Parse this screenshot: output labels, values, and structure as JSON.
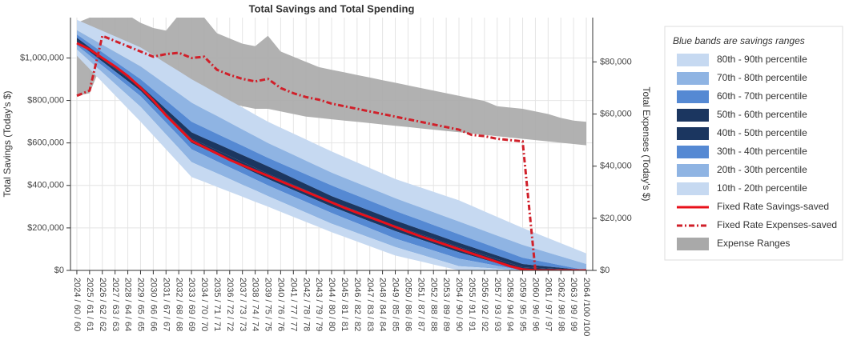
{
  "chart_data": {
    "type": "band",
    "title": "Total Savings and Total Spending",
    "y_label": "Total Savings (Today's $)",
    "y2_label": "Total Expenses (Today's $)",
    "legend_title": "Blue bands are savings ranges",
    "legend": "right",
    "grid": true,
    "categories": [
      "2024 / 60 / 60",
      "2025 / 61 / 61",
      "2026 / 62 / 62",
      "2027 / 63 / 63",
      "2028 / 64 / 64",
      "2029 / 65 / 65",
      "2030 / 66 / 66",
      "2031 / 67 / 67",
      "2032 / 68 / 68",
      "2033 / 69 / 69",
      "2034 / 70 / 70",
      "2035 / 71 / 71",
      "2036 / 72 / 72",
      "2037 / 73 / 73",
      "2038 / 74 / 74",
      "2039 / 75 / 75",
      "2040 / 76 / 76",
      "2041 / 77 / 77",
      "2042 / 78 / 78",
      "2043 / 79 / 79",
      "2044 / 80 / 80",
      "2045 / 81 / 81",
      "2046 / 82 / 82",
      "2047 / 83 / 83",
      "2048 / 84 / 84",
      "2049 / 85 / 85",
      "2050 / 86 / 86",
      "2051 / 87 / 87",
      "2052 / 88 / 88",
      "2053 / 89 / 89",
      "2054 / 90 / 90",
      "2055 / 91 / 91",
      "2056 / 92 / 92",
      "2057 / 93 / 93",
      "2058 / 94 / 94",
      "2059 / 95 / 95",
      "2060 / 96 / 96",
      "2061 / 97 / 97",
      "2062 / 98 / 98",
      "2063 / 99 / 99",
      "2064 /100 /100"
    ],
    "ylim": [
      0,
      1190000
    ],
    "yticks": [
      {
        "value": 0,
        "label": "$0"
      },
      {
        "value": 200000,
        "label": "$200,000"
      },
      {
        "value": 400000,
        "label": "$400,000"
      },
      {
        "value": 600000,
        "label": "$600,000"
      },
      {
        "value": 800000,
        "label": "$800,000"
      },
      {
        "value": 1000000,
        "label": "$1,000,000"
      }
    ],
    "y2lim": [
      0,
      97000
    ],
    "y2ticks": [
      {
        "value": 0,
        "label": "$0"
      },
      {
        "value": 20000,
        "label": "$20,000"
      },
      {
        "value": 40000,
        "label": "$40,000"
      },
      {
        "value": 60000,
        "label": "$60,000"
      },
      {
        "value": 80000,
        "label": "$80,000"
      }
    ],
    "bands": [
      {
        "name": "80th - 90th percentile",
        "color": "#c6d9f1"
      },
      {
        "name": "70th - 80th percentile",
        "color": "#8fb4e3"
      },
      {
        "name": "60th - 70th percentile",
        "color": "#5589d3"
      },
      {
        "name": "50th - 60th percentile",
        "color": "#1b3660"
      },
      {
        "name": "40th - 50th percentile",
        "color": "#1b3660"
      },
      {
        "name": "30th - 40th percentile",
        "color": "#5589d3"
      },
      {
        "name": "20th - 30th percentile",
        "color": "#8fb4e3"
      },
      {
        "name": "10th - 20th percentile",
        "color": "#c6d9f1"
      }
    ],
    "percentiles": [
      {
        "values": [
          1010000,
          948000,
          886000,
          824000,
          762000,
          700000,
          635000,
          570000,
          505000,
          440000,
          417000,
          393000,
          370000,
          347000,
          323000,
          300000,
          276000,
          252000,
          228000,
          204000,
          180000,
          158000,
          136000,
          114000,
          92000,
          70000,
          56000,
          42000,
          28000,
          14000,
          0,
          0,
          0,
          0,
          0,
          0,
          0,
          0,
          0,
          0,
          0
        ]
      },
      {
        "values": [
          1040000,
          986000,
          932000,
          878000,
          824000,
          770000,
          705000,
          640000,
          575000,
          510000,
          483000,
          457000,
          430000,
          403000,
          377000,
          350000,
          324000,
          298000,
          272000,
          246000,
          220000,
          198000,
          176000,
          154000,
          132000,
          110000,
          92000,
          74000,
          56000,
          38000,
          20000,
          16000,
          12000,
          8000,
          4000,
          0,
          0,
          0,
          0,
          0,
          0
        ]
      },
      {
        "values": [
          1060000,
          1012000,
          964000,
          916000,
          868000,
          820000,
          758000,
          695000,
          633000,
          570000,
          542000,
          513000,
          485000,
          457000,
          428000,
          400000,
          374000,
          348000,
          322000,
          296000,
          270000,
          246000,
          222000,
          198000,
          174000,
          150000,
          131000,
          112000,
          93000,
          74000,
          55000,
          44000,
          33000,
          22000,
          11000,
          0,
          0,
          0,
          0,
          0,
          0
        ]
      },
      {
        "values": [
          1075000,
          1029000,
          983000,
          937000,
          891000,
          845000,
          784000,
          723000,
          661000,
          600000,
          572000,
          543000,
          515000,
          487000,
          458000,
          430000,
          404000,
          378000,
          352000,
          326000,
          300000,
          277000,
          254000,
          231000,
          208000,
          185000,
          165000,
          145000,
          125000,
          105000,
          85000,
          68000,
          51000,
          34000,
          17000,
          0,
          0,
          0,
          0,
          0,
          0
        ]
      },
      {
        "values": [
          1085000,
          1040000,
          995000,
          950000,
          905000,
          860000,
          800000,
          740000,
          680000,
          620000,
          593000,
          565000,
          538000,
          510000,
          483000,
          455000,
          429000,
          403000,
          377000,
          351000,
          325000,
          302000,
          279000,
          256000,
          233000,
          210000,
          190000,
          170000,
          150000,
          130000,
          110000,
          91000,
          72000,
          53000,
          34000,
          15000,
          12000,
          9000,
          6000,
          3000,
          0
        ]
      },
      {
        "values": [
          1095000,
          1050000,
          1005000,
          960000,
          915000,
          870000,
          815000,
          760000,
          705000,
          650000,
          623000,
          597000,
          570000,
          543000,
          517000,
          490000,
          462000,
          434000,
          406000,
          378000,
          350000,
          327000,
          304000,
          281000,
          258000,
          235000,
          214000,
          193000,
          172000,
          151000,
          130000,
          110000,
          90000,
          70000,
          50000,
          30000,
          24000,
          18000,
          12000,
          6000,
          0
        ]
      },
      {
        "values": [
          1110000,
          1068000,
          1026000,
          984000,
          942000,
          900000,
          850000,
          800000,
          750000,
          700000,
          672000,
          643000,
          615000,
          587000,
          558000,
          530000,
          504000,
          478000,
          452000,
          426000,
          400000,
          376000,
          352000,
          328000,
          304000,
          280000,
          258000,
          236000,
          214000,
          192000,
          170000,
          148000,
          126000,
          104000,
          82000,
          60000,
          48000,
          36000,
          24000,
          12000,
          0
        ]
      },
      {
        "values": [
          1130000,
          1096000,
          1062000,
          1028000,
          994000,
          960000,
          918000,
          875000,
          833000,
          790000,
          758000,
          727000,
          695000,
          663000,
          632000,
          600000,
          572000,
          544000,
          516000,
          488000,
          460000,
          436000,
          412000,
          388000,
          364000,
          340000,
          318000,
          296000,
          274000,
          252000,
          230000,
          208000,
          186000,
          164000,
          142000,
          120000,
          102000,
          84000,
          66000,
          48000,
          30000
        ]
      },
      {
        "values": [
          1180000,
          1154000,
          1128000,
          1102000,
          1076000,
          1050000,
          1013000,
          975000,
          938000,
          900000,
          867000,
          833000,
          800000,
          767000,
          733000,
          700000,
          672000,
          644000,
          616000,
          588000,
          560000,
          534000,
          508000,
          482000,
          456000,
          430000,
          410000,
          390000,
          370000,
          350000,
          330000,
          304000,
          278000,
          252000,
          226000,
          200000,
          176000,
          152000,
          128000,
          104000,
          80000
        ]
      }
    ],
    "series": [
      {
        "name": "Fixed Rate Savings-saved",
        "color": "#e8101a",
        "style": "solid",
        "axis": "y",
        "values": [
          1070000,
          1040000,
          1000000,
          960000,
          915000,
          860000,
          800000,
          730000,
          670000,
          610000,
          580000,
          550000,
          520000,
          495000,
          470000,
          445000,
          420000,
          395000,
          370000,
          345000,
          320000,
          295000,
          272000,
          250000,
          228000,
          205000,
          182000,
          160000,
          140000,
          120000,
          100000,
          80000,
          60000,
          40000,
          20000,
          5000,
          0,
          0,
          0,
          0,
          0
        ]
      },
      {
        "name": "Fixed Rate Expenses-saved",
        "color": "#d0202a",
        "style": "dashdot",
        "axis": "y2",
        "values": [
          67000,
          69000,
          90000,
          88000,
          86000,
          84000,
          82000,
          83000,
          83500,
          81500,
          82000,
          77000,
          75000,
          73500,
          72500,
          73500,
          70000,
          68000,
          66500,
          65500,
          64000,
          63000,
          62000,
          61000,
          60000,
          59000,
          58000,
          57000,
          56000,
          55000,
          54000,
          52000,
          51500,
          50500,
          50000,
          49500,
          0,
          0,
          0,
          0,
          0
        ]
      }
    ],
    "expense_range": {
      "name": "Expense Ranges",
      "color": "#a9a9a9",
      "axis": "y2",
      "lower": [
        67000,
        68000,
        80000,
        82000,
        80000,
        78000,
        75000,
        72000,
        70000,
        68000,
        66000,
        65000,
        64000,
        63000,
        62000,
        62000,
        61000,
        60000,
        59000,
        58500,
        58000,
        57500,
        57000,
        56500,
        56000,
        55500,
        55000,
        54500,
        54000,
        53500,
        53000,
        52500,
        52000,
        51500,
        51000,
        50500,
        50000,
        49500,
        49000,
        48500,
        48000
      ],
      "upper": [
        95000,
        97000,
        100000,
        100000,
        98000,
        95000,
        93000,
        92000,
        98000,
        100000,
        97000,
        91000,
        89000,
        87000,
        86000,
        90000,
        84000,
        82000,
        80000,
        78000,
        77000,
        76000,
        75000,
        74000,
        73000,
        72000,
        71000,
        70000,
        69000,
        68000,
        67000,
        66000,
        65000,
        63000,
        62500,
        62000,
        61000,
        60000,
        58500,
        57500,
        57000
      ]
    }
  }
}
